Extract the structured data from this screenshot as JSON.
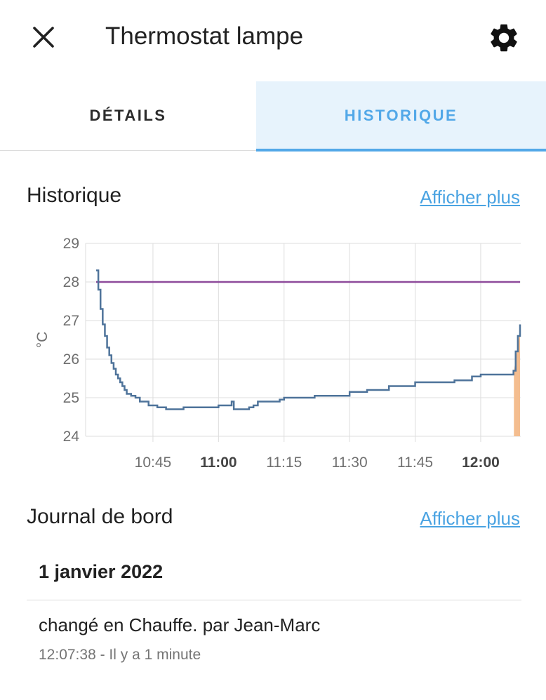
{
  "dialog": {
    "title": "Thermostat lampe",
    "close_icon": "close-icon",
    "settings_icon": "gear-icon"
  },
  "tabs": [
    {
      "label": "DÉTAILS",
      "active": false
    },
    {
      "label": "HISTORIQUE",
      "active": true
    }
  ],
  "history": {
    "title": "Historique",
    "show_more": "Afficher plus"
  },
  "chart_data": {
    "type": "line",
    "ylabel": "°C",
    "ylim": [
      24,
      29
    ],
    "yticks": [
      "24",
      "25",
      "26",
      "27",
      "28",
      "29"
    ],
    "xticks": [
      {
        "label": "10:45",
        "bold": false
      },
      {
        "label": "11:00",
        "bold": true
      },
      {
        "label": "11:15",
        "bold": false
      },
      {
        "label": "11:30",
        "bold": false
      },
      {
        "label": "11:45",
        "bold": false
      },
      {
        "label": "12:00",
        "bold": true
      }
    ],
    "grid": true,
    "colors": {
      "current": "#4e739a",
      "target": "#8e4b9b",
      "heating": "#f4bd8f"
    },
    "series": [
      {
        "type": "target",
        "points": [
          [
            "10:32",
            28.0
          ],
          [
            "12:09",
            28.0
          ]
        ]
      },
      {
        "type": "current",
        "points": [
          [
            "10:32",
            28.3
          ],
          [
            "10:32.5",
            27.8
          ],
          [
            "10:33",
            27.3
          ],
          [
            "10:33.5",
            26.9
          ],
          [
            "10:34",
            26.6
          ],
          [
            "10:34.5",
            26.3
          ],
          [
            "10:35",
            26.1
          ],
          [
            "10:35.5",
            25.9
          ],
          [
            "10:36",
            25.75
          ],
          [
            "10:36.5",
            25.6
          ],
          [
            "10:37",
            25.5
          ],
          [
            "10:37.5",
            25.4
          ],
          [
            "10:38",
            25.3
          ],
          [
            "10:38.5",
            25.2
          ],
          [
            "10:39",
            25.1
          ],
          [
            "10:40",
            25.05
          ],
          [
            "10:41",
            25.0
          ],
          [
            "10:42",
            24.9
          ],
          [
            "10:44",
            24.8
          ],
          [
            "10:46",
            24.75
          ],
          [
            "10:48",
            24.7
          ],
          [
            "10:52",
            24.75
          ],
          [
            "11:00",
            24.8
          ],
          [
            "11:03",
            24.9
          ],
          [
            "11:03.5",
            24.7
          ],
          [
            "11:07",
            24.75
          ],
          [
            "11:08",
            24.8
          ],
          [
            "11:09",
            24.9
          ],
          [
            "11:14",
            24.95
          ],
          [
            "11:15",
            25.0
          ],
          [
            "11:22",
            25.05
          ],
          [
            "11:30",
            25.15
          ],
          [
            "11:34",
            25.2
          ],
          [
            "11:39",
            25.3
          ],
          [
            "11:45",
            25.4
          ],
          [
            "11:54",
            25.45
          ],
          [
            "11:58",
            25.55
          ],
          [
            "12:00",
            25.6
          ],
          [
            "12:07.5",
            25.7
          ],
          [
            "12:08",
            26.2
          ],
          [
            "12:08.5",
            26.6
          ],
          [
            "12:09",
            26.9
          ]
        ]
      },
      {
        "type": "heating",
        "points": [
          [
            "12:07.6",
            24.0
          ],
          [
            "12:09",
            24.0
          ]
        ],
        "top": [
          [
            "12:07.6",
            25.7
          ],
          [
            "12:09",
            26.7
          ]
        ]
      }
    ]
  },
  "logbook": {
    "title": "Journal de bord",
    "show_more": "Afficher plus",
    "date": "1 janvier 2022",
    "entries": [
      {
        "message": "changé en Chauffe. par Jean-Marc",
        "time": "12:07:38 - Il y a 1 minute"
      }
    ]
  }
}
